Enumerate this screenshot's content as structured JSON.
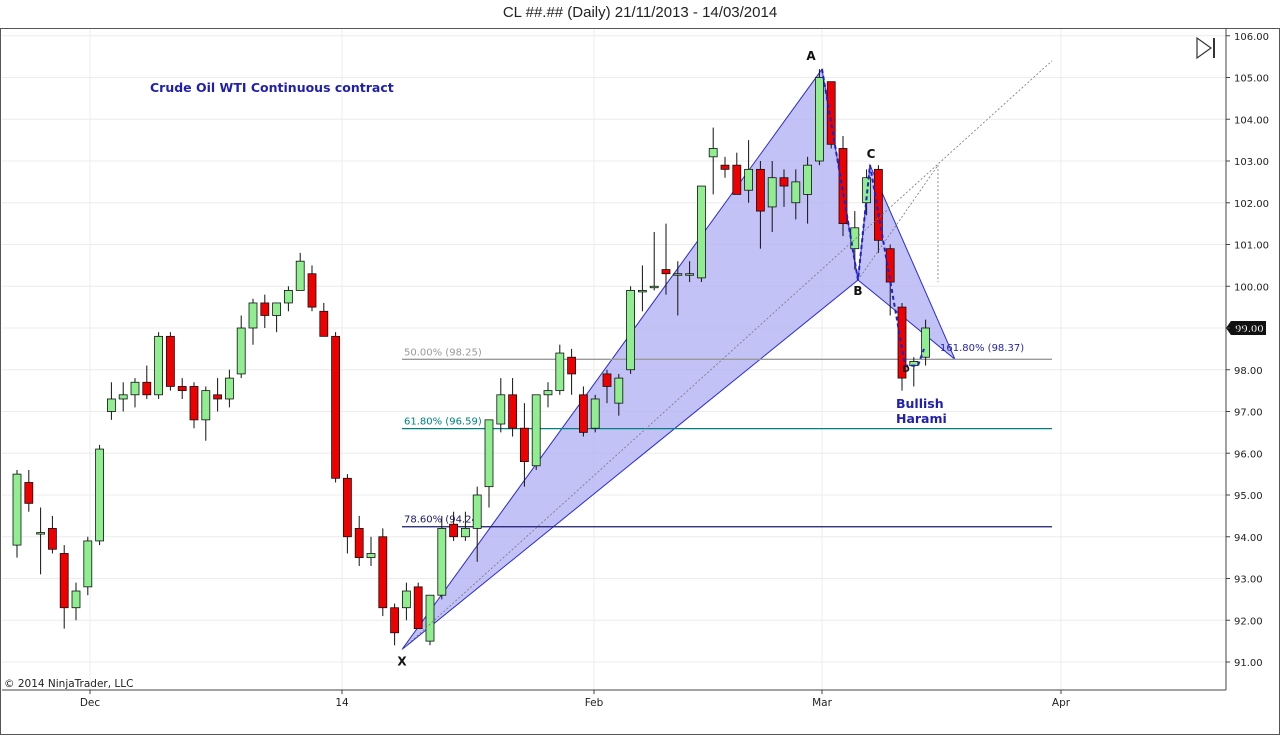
{
  "window": {
    "title": "CL ##.## (Daily)  21/11/2013 - 14/03/2014"
  },
  "annotations": {
    "instrument_label": "Crude Oil WTI Continuous contract",
    "pattern_label_line1": "Bullish",
    "pattern_label_line2": "Harami",
    "copyright": "© 2014 NinjaTrader, LLC",
    "point_labels": [
      "X",
      "A",
      "B",
      "C",
      "D"
    ],
    "fib_levels": [
      {
        "label": "50.00% (98.25)",
        "value": 98.25,
        "color": "#9a9a9a"
      },
      {
        "label": "61.80% (96.59)",
        "value": 96.59,
        "color": "#008080"
      },
      {
        "label": "78.60% (94.24)",
        "value": 94.24,
        "color": "#1a1a6e"
      }
    ],
    "extension_label": "161.80% (98.37)",
    "last_price": "99.00",
    "pattern_fill": "#b3b3f5",
    "pattern_stroke": "#2b2bd0",
    "text_blue": "#1f1fb0"
  },
  "chart_data": {
    "type": "candlestick",
    "title": "CL ##.## (Daily)  21/11/2013 - 14/03/2014",
    "x_ticks": [
      "Dec",
      "14",
      "Feb",
      "Mar",
      "Apr"
    ],
    "y_ticks": [
      "91.00",
      "92.00",
      "93.00",
      "94.00",
      "95.00",
      "96.00",
      "97.00",
      "98.00",
      "99.00",
      "100.00",
      "101.00",
      "102.00",
      "103.00",
      "104.00",
      "105.00",
      "106.00"
    ],
    "ylim": [
      90.7,
      106.2
    ],
    "grid": true,
    "y_axis_side": "right",
    "candles": [
      {
        "open": 93.8,
        "high": 95.6,
        "low": 93.5,
        "close": 95.5
      },
      {
        "open": 95.3,
        "high": 95.6,
        "low": 94.6,
        "close": 94.8
      },
      {
        "open": 94.1,
        "high": 94.7,
        "low": 93.1,
        "close": 94.1
      },
      {
        "open": 94.2,
        "high": 94.5,
        "low": 93.6,
        "close": 93.7
      },
      {
        "open": 93.6,
        "high": 93.8,
        "low": 91.8,
        "close": 92.3
      },
      {
        "open": 92.3,
        "high": 92.9,
        "low": 92.0,
        "close": 92.7
      },
      {
        "open": 92.8,
        "high": 94.0,
        "low": 92.6,
        "close": 93.9
      },
      {
        "open": 93.9,
        "high": 96.2,
        "low": 93.8,
        "close": 96.1
      },
      {
        "open": 97.0,
        "high": 97.7,
        "low": 96.8,
        "close": 97.3
      },
      {
        "open": 97.3,
        "high": 97.7,
        "low": 97.0,
        "close": 97.4
      },
      {
        "open": 97.4,
        "high": 97.8,
        "low": 97.1,
        "close": 97.7
      },
      {
        "open": 97.7,
        "high": 98.1,
        "low": 97.3,
        "close": 97.4
      },
      {
        "open": 97.4,
        "high": 98.9,
        "low": 97.3,
        "close": 98.8
      },
      {
        "open": 98.8,
        "high": 98.9,
        "low": 97.5,
        "close": 97.6
      },
      {
        "open": 97.6,
        "high": 97.8,
        "low": 97.3,
        "close": 97.5
      },
      {
        "open": 97.6,
        "high": 97.7,
        "low": 96.6,
        "close": 96.8
      },
      {
        "open": 96.8,
        "high": 97.6,
        "low": 96.3,
        "close": 97.5
      },
      {
        "open": 97.4,
        "high": 97.8,
        "low": 97.0,
        "close": 97.3
      },
      {
        "open": 97.3,
        "high": 98.0,
        "low": 97.1,
        "close": 97.8
      },
      {
        "open": 97.9,
        "high": 99.3,
        "low": 97.8,
        "close": 99.0
      },
      {
        "open": 99.0,
        "high": 99.7,
        "low": 98.6,
        "close": 99.6
      },
      {
        "open": 99.6,
        "high": 99.8,
        "low": 99.0,
        "close": 99.3
      },
      {
        "open": 99.3,
        "high": 99.6,
        "low": 98.9,
        "close": 99.6
      },
      {
        "open": 99.6,
        "high": 100.0,
        "low": 99.4,
        "close": 99.9
      },
      {
        "open": 99.9,
        "high": 100.8,
        "low": 99.9,
        "close": 100.6
      },
      {
        "open": 100.3,
        "high": 100.5,
        "low": 99.4,
        "close": 99.5
      },
      {
        "open": 99.4,
        "high": 99.6,
        "low": 98.8,
        "close": 98.8
      },
      {
        "open": 98.8,
        "high": 98.9,
        "low": 95.3,
        "close": 95.4
      },
      {
        "open": 95.4,
        "high": 95.5,
        "low": 93.6,
        "close": 94.0
      },
      {
        "open": 94.2,
        "high": 94.5,
        "low": 93.3,
        "close": 93.5
      },
      {
        "open": 93.5,
        "high": 94.0,
        "low": 93.3,
        "close": 93.6
      },
      {
        "open": 94.0,
        "high": 94.2,
        "low": 92.1,
        "close": 92.3
      },
      {
        "open": 92.3,
        "high": 92.4,
        "low": 91.4,
        "close": 91.7
      },
      {
        "open": 92.3,
        "high": 92.9,
        "low": 92.0,
        "close": 92.7
      },
      {
        "open": 92.8,
        "high": 92.9,
        "low": 91.8,
        "close": 91.8
      },
      {
        "open": 91.5,
        "high": 92.6,
        "low": 91.4,
        "close": 92.6
      },
      {
        "open": 92.6,
        "high": 94.5,
        "low": 92.5,
        "close": 94.2
      },
      {
        "open": 94.3,
        "high": 94.6,
        "low": 93.9,
        "close": 94.0
      },
      {
        "open": 94.0,
        "high": 94.6,
        "low": 93.9,
        "close": 94.2
      },
      {
        "open": 94.2,
        "high": 95.2,
        "low": 93.4,
        "close": 95.0
      },
      {
        "open": 95.2,
        "high": 96.8,
        "low": 94.7,
        "close": 96.8
      },
      {
        "open": 96.7,
        "high": 97.8,
        "low": 96.5,
        "close": 97.4
      },
      {
        "open": 97.4,
        "high": 97.8,
        "low": 96.4,
        "close": 96.6
      },
      {
        "open": 96.6,
        "high": 97.2,
        "low": 95.2,
        "close": 95.8
      },
      {
        "open": 95.7,
        "high": 97.4,
        "low": 95.6,
        "close": 97.4
      },
      {
        "open": 97.4,
        "high": 97.7,
        "low": 97.1,
        "close": 97.5
      },
      {
        "open": 97.5,
        "high": 98.6,
        "low": 97.4,
        "close": 98.4
      },
      {
        "open": 98.3,
        "high": 98.5,
        "low": 97.4,
        "close": 97.9
      },
      {
        "open": 97.4,
        "high": 97.6,
        "low": 96.4,
        "close": 96.5
      },
      {
        "open": 96.6,
        "high": 97.4,
        "low": 96.5,
        "close": 97.3
      },
      {
        "open": 97.9,
        "high": 98.0,
        "low": 97.2,
        "close": 97.6
      },
      {
        "open": 97.2,
        "high": 97.9,
        "low": 96.9,
        "close": 97.8
      },
      {
        "open": 98.0,
        "high": 100.0,
        "low": 97.9,
        "close": 99.9
      },
      {
        "open": 99.9,
        "high": 100.5,
        "low": 99.4,
        "close": 99.9
      },
      {
        "open": 100.0,
        "high": 101.3,
        "low": 99.9,
        "close": 100.0
      },
      {
        "open": 100.4,
        "high": 101.5,
        "low": 99.8,
        "close": 100.3
      },
      {
        "open": 100.3,
        "high": 100.6,
        "low": 99.3,
        "close": 100.3
      },
      {
        "open": 100.3,
        "high": 100.6,
        "low": 100.1,
        "close": 100.3
      },
      {
        "open": 100.2,
        "high": 102.4,
        "low": 100.1,
        "close": 102.4
      },
      {
        "open": 103.1,
        "high": 103.8,
        "low": 102.2,
        "close": 103.3
      },
      {
        "open": 102.9,
        "high": 103.1,
        "low": 102.6,
        "close": 102.8
      },
      {
        "open": 102.9,
        "high": 103.2,
        "low": 102.2,
        "close": 102.2
      },
      {
        "open": 102.3,
        "high": 103.5,
        "low": 102.0,
        "close": 102.8
      },
      {
        "open": 102.8,
        "high": 103.0,
        "low": 100.9,
        "close": 101.8
      },
      {
        "open": 101.9,
        "high": 103.0,
        "low": 101.3,
        "close": 102.6
      },
      {
        "open": 102.6,
        "high": 102.8,
        "low": 101.9,
        "close": 102.4
      },
      {
        "open": 102.0,
        "high": 102.8,
        "low": 101.6,
        "close": 102.5
      },
      {
        "open": 102.2,
        "high": 103.1,
        "low": 101.5,
        "close": 102.9
      },
      {
        "open": 103.0,
        "high": 105.2,
        "low": 102.9,
        "close": 105.0
      },
      {
        "open": 104.9,
        "high": 104.9,
        "low": 103.3,
        "close": 103.4
      },
      {
        "open": 103.3,
        "high": 103.6,
        "low": 101.2,
        "close": 101.5
      },
      {
        "open": 100.9,
        "high": 101.8,
        "low": 100.4,
        "close": 101.4
      },
      {
        "open": 102.0,
        "high": 102.8,
        "low": 101.7,
        "close": 102.6
      },
      {
        "open": 102.8,
        "high": 102.9,
        "low": 100.8,
        "close": 101.1
      },
      {
        "open": 100.9,
        "high": 101.0,
        "low": 99.3,
        "close": 100.1
      },
      {
        "open": 99.5,
        "high": 99.6,
        "low": 97.5,
        "close": 97.8
      },
      {
        "open": 98.1,
        "high": 98.3,
        "low": 97.6,
        "close": 98.2
      },
      {
        "open": 98.3,
        "high": 99.2,
        "low": 98.1,
        "close": 99.0
      }
    ],
    "harmonic_pattern": {
      "name": "Bullish Harami",
      "points": [
        {
          "label": "X",
          "value": 91.3
        },
        {
          "label": "A",
          "value": 105.2
        },
        {
          "label": "B",
          "value": 100.15
        },
        {
          "label": "C",
          "value": 102.9
        },
        {
          "label": "D",
          "value": 98.25
        }
      ]
    }
  }
}
